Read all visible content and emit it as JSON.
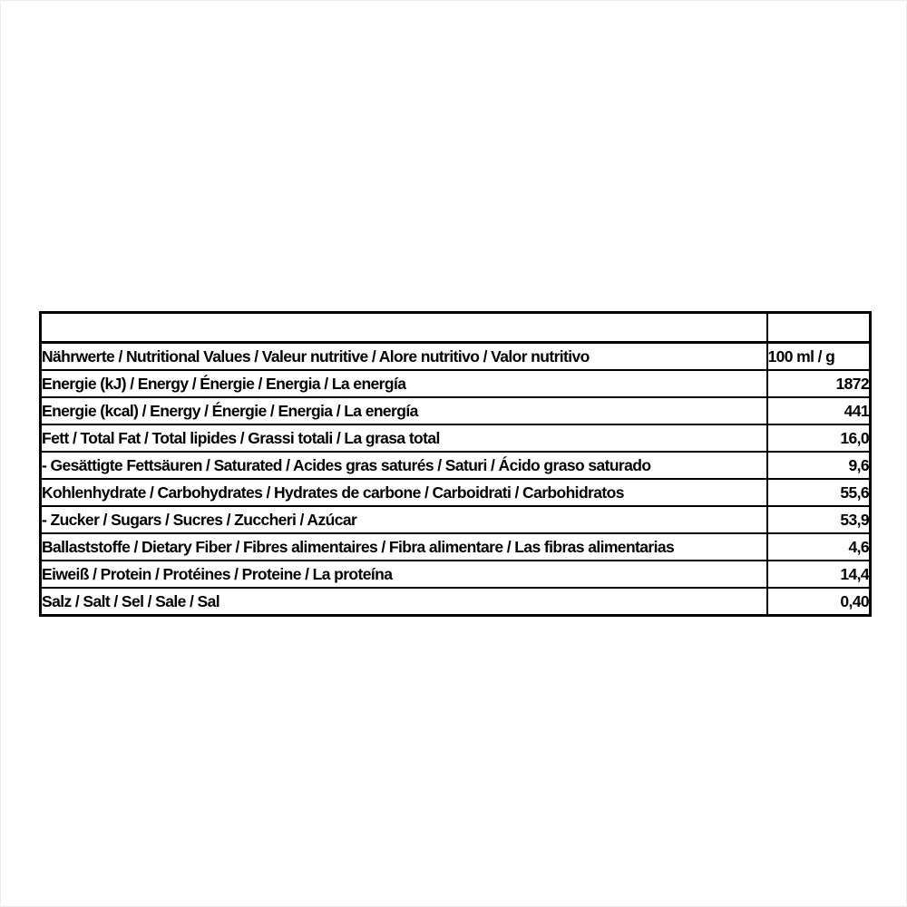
{
  "colors": {
    "border": "#000000",
    "text": "#000000",
    "background": "#ffffff"
  },
  "table": {
    "header": {
      "label": "Nährwerte / Nutritional Values / Valeur nutritive / Alore nutritivo / Valor nutritivo",
      "unit": "100 ml / g"
    },
    "rows": [
      {
        "label": "Energie (kJ) / Energy / Énergie / Energia / La energía",
        "value": "1872"
      },
      {
        "label": "Energie (kcal) / Energy / Énergie / Energia / La energía",
        "value": "441"
      },
      {
        "label": "Fett / Total Fat / Total lipides / Grassi totali / La grasa total",
        "value": "16,0"
      },
      {
        "label": "- Gesättigte Fettsäuren / Saturated / Acides gras saturés / Saturi / Ácido graso saturado",
        "value": "9,6"
      },
      {
        "label": "Kohlenhydrate / Carbohydrates / Hydrates de carbone / Carboidrati / Carbohidratos",
        "value": "55,6"
      },
      {
        "label": "- Zucker / Sugars / Sucres / Zuccheri / Azúcar",
        "value": "53,9"
      },
      {
        "label": "Ballaststoffe / Dietary Fiber / Fibres alimentaires / Fibra alimentare / Las fibras alimentarias",
        "value": "4,6"
      },
      {
        "label": "Eiweiß / Protein / Protéines / Proteine / La proteína",
        "value": "14,4"
      },
      {
        "label": "Salz / Salt / Sel / Sale / Sal",
        "value": "0,40"
      }
    ]
  }
}
